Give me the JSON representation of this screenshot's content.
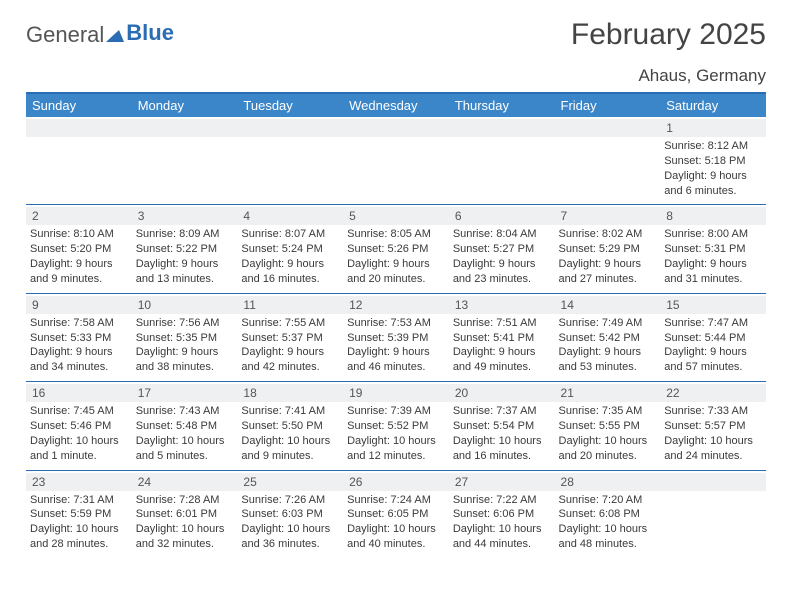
{
  "logo": {
    "word1": "General",
    "word2": "Blue"
  },
  "title": "February 2025",
  "location": "Ahaus, Germany",
  "colors": {
    "accent": "#3b86c8",
    "rule": "#2a6db3",
    "stripe": "#eef0f1"
  },
  "daysOfWeek": [
    "Sunday",
    "Monday",
    "Tuesday",
    "Wednesday",
    "Thursday",
    "Friday",
    "Saturday"
  ],
  "startOffset": 6,
  "daysInMonth": 28,
  "days": {
    "1": {
      "sunrise": "8:12 AM",
      "sunset": "5:18 PM",
      "daylight": "9 hours and 6 minutes."
    },
    "2": {
      "sunrise": "8:10 AM",
      "sunset": "5:20 PM",
      "daylight": "9 hours and 9 minutes."
    },
    "3": {
      "sunrise": "8:09 AM",
      "sunset": "5:22 PM",
      "daylight": "9 hours and 13 minutes."
    },
    "4": {
      "sunrise": "8:07 AM",
      "sunset": "5:24 PM",
      "daylight": "9 hours and 16 minutes."
    },
    "5": {
      "sunrise": "8:05 AM",
      "sunset": "5:26 PM",
      "daylight": "9 hours and 20 minutes."
    },
    "6": {
      "sunrise": "8:04 AM",
      "sunset": "5:27 PM",
      "daylight": "9 hours and 23 minutes."
    },
    "7": {
      "sunrise": "8:02 AM",
      "sunset": "5:29 PM",
      "daylight": "9 hours and 27 minutes."
    },
    "8": {
      "sunrise": "8:00 AM",
      "sunset": "5:31 PM",
      "daylight": "9 hours and 31 minutes."
    },
    "9": {
      "sunrise": "7:58 AM",
      "sunset": "5:33 PM",
      "daylight": "9 hours and 34 minutes."
    },
    "10": {
      "sunrise": "7:56 AM",
      "sunset": "5:35 PM",
      "daylight": "9 hours and 38 minutes."
    },
    "11": {
      "sunrise": "7:55 AM",
      "sunset": "5:37 PM",
      "daylight": "9 hours and 42 minutes."
    },
    "12": {
      "sunrise": "7:53 AM",
      "sunset": "5:39 PM",
      "daylight": "9 hours and 46 minutes."
    },
    "13": {
      "sunrise": "7:51 AM",
      "sunset": "5:41 PM",
      "daylight": "9 hours and 49 minutes."
    },
    "14": {
      "sunrise": "7:49 AM",
      "sunset": "5:42 PM",
      "daylight": "9 hours and 53 minutes."
    },
    "15": {
      "sunrise": "7:47 AM",
      "sunset": "5:44 PM",
      "daylight": "9 hours and 57 minutes."
    },
    "16": {
      "sunrise": "7:45 AM",
      "sunset": "5:46 PM",
      "daylight": "10 hours and 1 minute."
    },
    "17": {
      "sunrise": "7:43 AM",
      "sunset": "5:48 PM",
      "daylight": "10 hours and 5 minutes."
    },
    "18": {
      "sunrise": "7:41 AM",
      "sunset": "5:50 PM",
      "daylight": "10 hours and 9 minutes."
    },
    "19": {
      "sunrise": "7:39 AM",
      "sunset": "5:52 PM",
      "daylight": "10 hours and 12 minutes."
    },
    "20": {
      "sunrise": "7:37 AM",
      "sunset": "5:54 PM",
      "daylight": "10 hours and 16 minutes."
    },
    "21": {
      "sunrise": "7:35 AM",
      "sunset": "5:55 PM",
      "daylight": "10 hours and 20 minutes."
    },
    "22": {
      "sunrise": "7:33 AM",
      "sunset": "5:57 PM",
      "daylight": "10 hours and 24 minutes."
    },
    "23": {
      "sunrise": "7:31 AM",
      "sunset": "5:59 PM",
      "daylight": "10 hours and 28 minutes."
    },
    "24": {
      "sunrise": "7:28 AM",
      "sunset": "6:01 PM",
      "daylight": "10 hours and 32 minutes."
    },
    "25": {
      "sunrise": "7:26 AM",
      "sunset": "6:03 PM",
      "daylight": "10 hours and 36 minutes."
    },
    "26": {
      "sunrise": "7:24 AM",
      "sunset": "6:05 PM",
      "daylight": "10 hours and 40 minutes."
    },
    "27": {
      "sunrise": "7:22 AM",
      "sunset": "6:06 PM",
      "daylight": "10 hours and 44 minutes."
    },
    "28": {
      "sunrise": "7:20 AM",
      "sunset": "6:08 PM",
      "daylight": "10 hours and 48 minutes."
    }
  },
  "labels": {
    "sunrise": "Sunrise: ",
    "sunset": "Sunset: ",
    "daylight": "Daylight: "
  }
}
